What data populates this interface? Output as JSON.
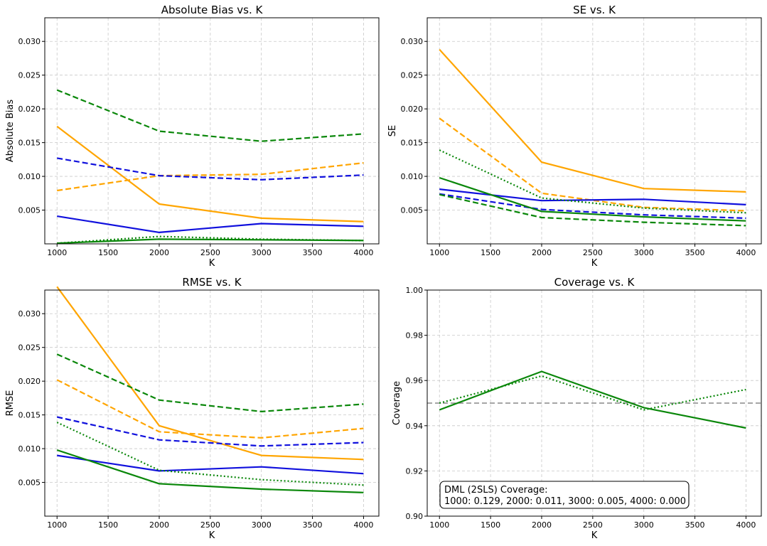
{
  "colors": {
    "orange": "#ffa500",
    "blue": "#1010dd",
    "green": "#0a870a",
    "reference": "#888888"
  },
  "chart_data": [
    {
      "type": "line",
      "title": "Absolute Bias vs. K",
      "xlabel": "K",
      "ylabel": "Absolute Bias",
      "x": [
        1000,
        2000,
        3000,
        4000
      ],
      "xlim": [
        880,
        4150
      ],
      "ylim": [
        0.0,
        0.0335
      ],
      "xticks": [
        "1000",
        "1500",
        "2000",
        "2500",
        "3000",
        "3500",
        "4000"
      ],
      "yticks": [
        "0.005",
        "0.010",
        "0.015",
        "0.020",
        "0.025",
        "0.030"
      ],
      "grid": true,
      "series": [
        {
          "color": "orange",
          "style": "solid",
          "values": [
            0.0174,
            0.0059,
            0.0038,
            0.0033
          ]
        },
        {
          "color": "orange",
          "style": "dashed",
          "values": [
            0.0079,
            0.0101,
            0.0103,
            0.012
          ]
        },
        {
          "color": "blue",
          "style": "solid",
          "values": [
            0.0041,
            0.0017,
            0.003,
            0.0026
          ]
        },
        {
          "color": "blue",
          "style": "dashed",
          "values": [
            0.0127,
            0.0101,
            0.0095,
            0.0102
          ]
        },
        {
          "color": "green",
          "style": "solid",
          "values": [
            0.0001,
            0.0007,
            0.0006,
            0.0005
          ]
        },
        {
          "color": "green",
          "style": "dashed",
          "values": [
            0.0228,
            0.0167,
            0.0152,
            0.0163
          ]
        },
        {
          "color": "green",
          "style": "dotted",
          "values": [
            0.0001,
            0.0011,
            0.0007,
            0.0005
          ]
        }
      ]
    },
    {
      "type": "line",
      "title": "SE vs. K",
      "xlabel": "K",
      "ylabel": "SE",
      "x": [
        1000,
        2000,
        3000,
        4000
      ],
      "xlim": [
        880,
        4150
      ],
      "ylim": [
        0.0,
        0.0335
      ],
      "xticks": [
        "1000",
        "1500",
        "2000",
        "2500",
        "3000",
        "3500",
        "4000"
      ],
      "yticks": [
        "0.005",
        "0.010",
        "0.015",
        "0.020",
        "0.025",
        "0.030"
      ],
      "grid": true,
      "series": [
        {
          "color": "orange",
          "style": "solid",
          "values": [
            0.0288,
            0.0121,
            0.0082,
            0.0077
          ]
        },
        {
          "color": "orange",
          "style": "dashed",
          "values": [
            0.0186,
            0.0075,
            0.0054,
            0.0049
          ]
        },
        {
          "color": "blue",
          "style": "solid",
          "values": [
            0.0081,
            0.0064,
            0.0066,
            0.0058
          ]
        },
        {
          "color": "blue",
          "style": "dashed",
          "values": [
            0.0074,
            0.0051,
            0.0043,
            0.0038
          ]
        },
        {
          "color": "green",
          "style": "solid",
          "values": [
            0.0098,
            0.0048,
            0.004,
            0.0034
          ]
        },
        {
          "color": "green",
          "style": "dashed",
          "values": [
            0.0073,
            0.0039,
            0.0032,
            0.0027
          ]
        },
        {
          "color": "green",
          "style": "dotted",
          "values": [
            0.0139,
            0.0068,
            0.0053,
            0.0046
          ]
        }
      ]
    },
    {
      "type": "line",
      "title": "RMSE vs. K",
      "xlabel": "K",
      "ylabel": "RMSE",
      "x": [
        1000,
        2000,
        3000,
        4000
      ],
      "xlim": [
        880,
        4150
      ],
      "ylim": [
        0.0,
        0.0335
      ],
      "xticks": [
        "1000",
        "1500",
        "2000",
        "2500",
        "3000",
        "3500",
        "4000"
      ],
      "yticks": [
        "0.005",
        "0.010",
        "0.015",
        "0.020",
        "0.025",
        "0.030"
      ],
      "grid": true,
      "series": [
        {
          "color": "orange",
          "style": "solid",
          "values": [
            0.034,
            0.0134,
            0.009,
            0.0084
          ]
        },
        {
          "color": "orange",
          "style": "dashed",
          "values": [
            0.0202,
            0.0125,
            0.0116,
            0.013
          ]
        },
        {
          "color": "blue",
          "style": "solid",
          "values": [
            0.009,
            0.0067,
            0.0073,
            0.0063
          ]
        },
        {
          "color": "blue",
          "style": "dashed",
          "values": [
            0.0147,
            0.0113,
            0.0104,
            0.0109
          ]
        },
        {
          "color": "green",
          "style": "solid",
          "values": [
            0.0098,
            0.0048,
            0.004,
            0.0035
          ]
        },
        {
          "color": "green",
          "style": "dashed",
          "values": [
            0.024,
            0.0172,
            0.0155,
            0.0166
          ]
        },
        {
          "color": "green",
          "style": "dotted",
          "values": [
            0.0139,
            0.0068,
            0.0054,
            0.0046
          ]
        }
      ]
    },
    {
      "type": "line",
      "title": "Coverage vs. K",
      "xlabel": "K",
      "ylabel": "Coverage",
      "x": [
        1000,
        2000,
        3000,
        4000
      ],
      "xlim": [
        880,
        4150
      ],
      "ylim": [
        0.9,
        1.0
      ],
      "xticks": [
        "1000",
        "1500",
        "2000",
        "2500",
        "3000",
        "3500",
        "4000"
      ],
      "yticks": [
        "0.90",
        "0.92",
        "0.94",
        "0.96",
        "0.98",
        "1.00"
      ],
      "grid": true,
      "reference_line": 0.95,
      "series": [
        {
          "color": "green",
          "style": "solid",
          "values": [
            0.947,
            0.964,
            0.948,
            0.939
          ]
        },
        {
          "color": "green",
          "style": "dotted",
          "values": [
            0.95,
            0.962,
            0.947,
            0.956
          ]
        }
      ],
      "annotation": {
        "line1": "DML (2SLS) Coverage:",
        "line2": "1000: 0.129, 2000: 0.011, 3000: 0.005, 4000: 0.000"
      }
    }
  ]
}
